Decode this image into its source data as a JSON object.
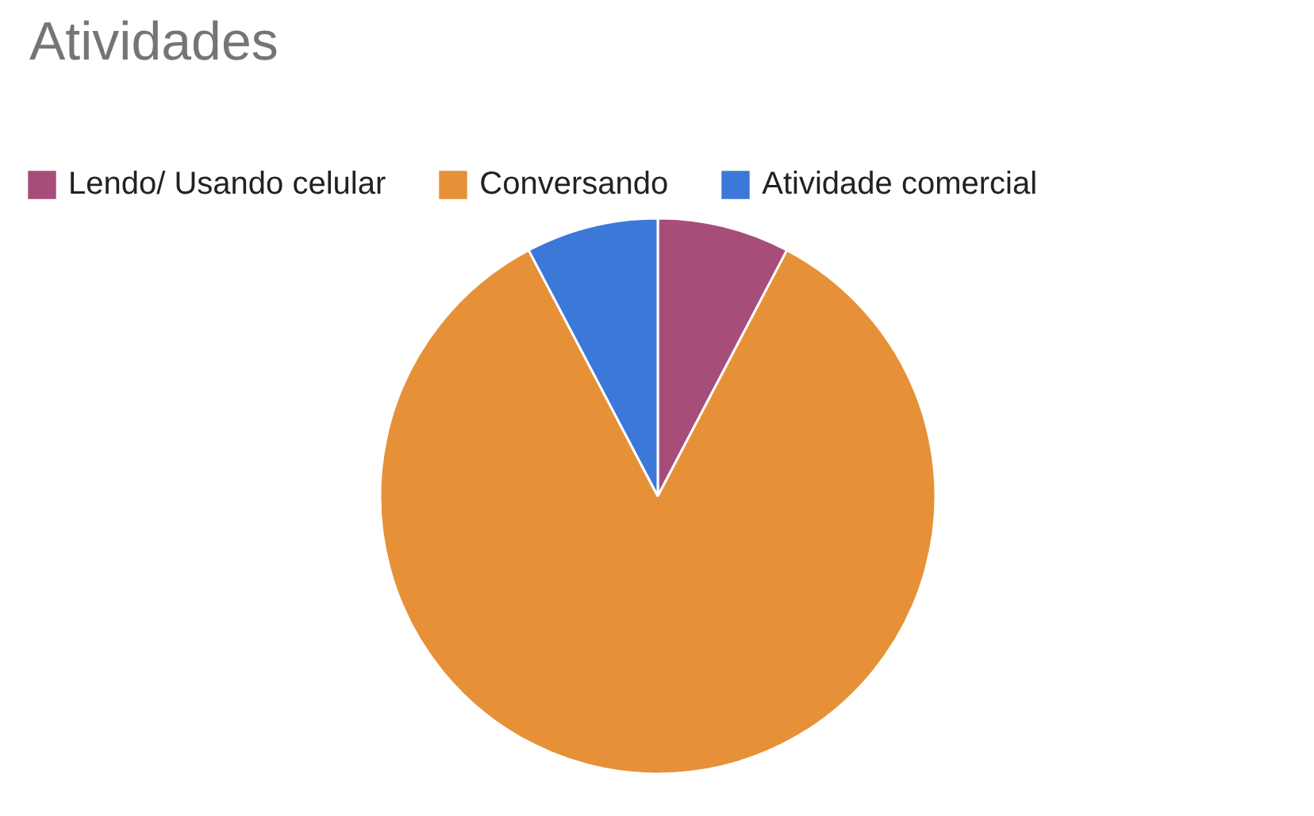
{
  "chart_data": {
    "type": "pie",
    "title": "Atividades",
    "categories": [
      "Lendo/ Usando celular",
      "Conversando",
      "Atividade comercial"
    ],
    "values": [
      7.7,
      84.6,
      7.7
    ],
    "colors": [
      "#a64d79",
      "#e69138",
      "#3c78d8"
    ],
    "legend": "top"
  }
}
